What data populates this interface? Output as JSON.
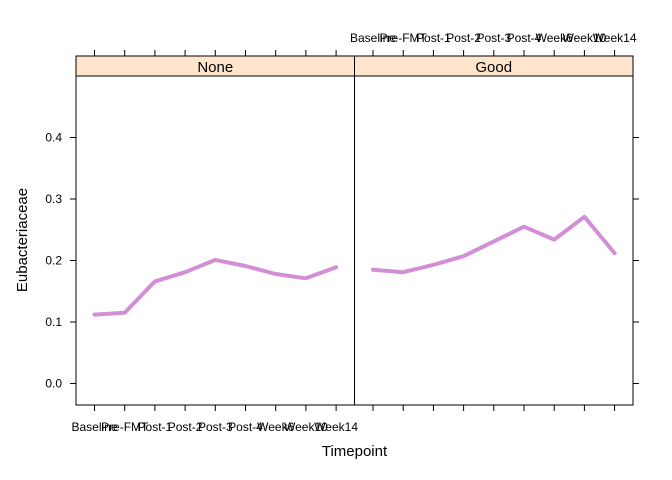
{
  "chart_data": {
    "type": "line",
    "xlabel": "Timepoint",
    "ylabel": "Eubacteriaceae",
    "categories": [
      "Baseline",
      "Pre-FMT",
      "Post-1",
      "Post-2",
      "Post-3",
      "Post-4",
      "Week6",
      "Week10",
      "Week14"
    ],
    "ylim": [
      -0.035,
      0.5
    ],
    "yticks": [
      "0.0",
      "0.1",
      "0.2",
      "0.3",
      "0.4"
    ],
    "line_color": "#d38fd6",
    "strip_color": "#ffe5cc",
    "grid": false,
    "panels": [
      {
        "label": "None",
        "values": [
          0.112,
          0.115,
          0.166,
          0.181,
          0.201,
          0.191,
          0.178,
          0.171,
          0.189
        ]
      },
      {
        "label": "Good",
        "values": [
          0.185,
          0.181,
          0.193,
          0.207,
          0.231,
          0.255,
          0.234,
          0.271,
          0.212
        ]
      }
    ]
  }
}
